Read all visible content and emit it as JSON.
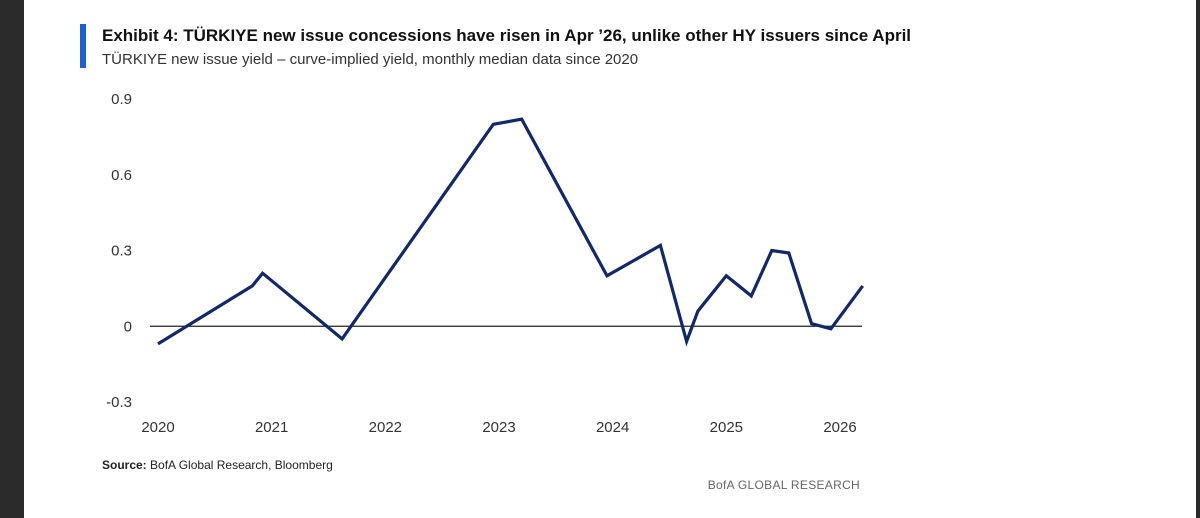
{
  "header": {
    "title": "Exhibit 4: TÜRKIYE new issue concessions have risen in Apr ’26, unlike other HY issuers since April",
    "subtitle": "TÜRKIYE new issue yield – curve-implied yield, monthly median data since 2020"
  },
  "footer": {
    "source_label": "Source:",
    "source_text": "BofA Global Research, Bloomberg",
    "brand": "BofA GLOBAL RESEARCH"
  },
  "colors": {
    "line": "#12286b",
    "accent": "#1f5fd6",
    "zero_line": "#222222"
  },
  "chart_data": {
    "type": "line",
    "title": "",
    "xlabel": "",
    "ylabel": "",
    "ylim": [
      -0.3,
      0.9
    ],
    "xlim": [
      2020.0,
      2026.0
    ],
    "grid": false,
    "x_ticks": [
      "2020",
      "2021",
      "2022",
      "2023",
      "2024",
      "2025",
      "2026"
    ],
    "y_ticks": [
      "0.9",
      "0.6",
      "0.3",
      "0",
      "-0.3"
    ],
    "series": [
      {
        "name": "",
        "x": [
          2020.0,
          2020.83,
          2020.92,
          2021.62,
          2022.95,
          2023.2,
          2023.95,
          2024.42,
          2024.65,
          2024.75,
          2025.0,
          2025.22,
          2025.4,
          2025.55,
          2025.75,
          2025.92,
          2026.2
        ],
        "y": [
          -0.07,
          0.16,
          0.21,
          -0.05,
          0.8,
          0.82,
          0.2,
          0.32,
          -0.06,
          0.06,
          0.2,
          0.12,
          0.3,
          0.29,
          0.01,
          -0.01,
          0.16
        ]
      }
    ]
  }
}
